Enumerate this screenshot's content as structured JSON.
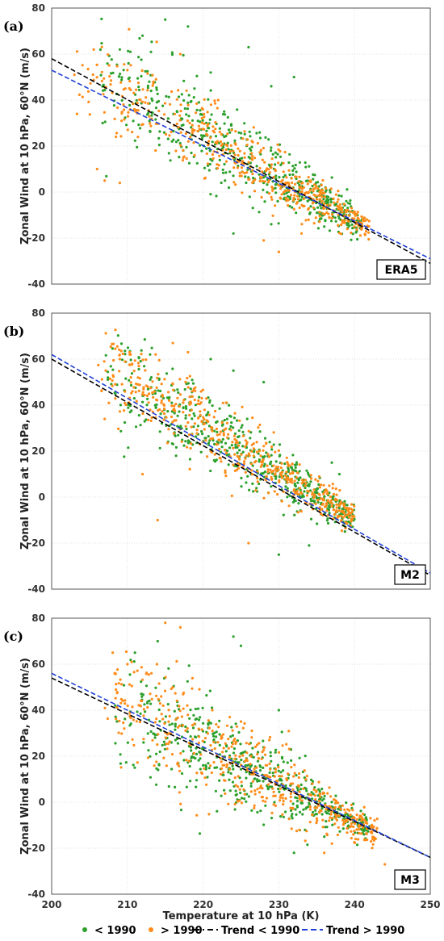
{
  "colors": {
    "before_1990": "#2ca02c",
    "after_1990": "#ff8c1a",
    "trend_before": "#000000",
    "trend_after": "#1f3fd4"
  },
  "legend": {
    "items": [
      {
        "label": "< 1990",
        "kind": "marker",
        "color": "#2ca02c"
      },
      {
        "label": "> 1990",
        "kind": "marker",
        "color": "#ff8c1a"
      },
      {
        "label": "Trend < 1990",
        "kind": "dash",
        "color": "#000000"
      },
      {
        "label": "Trend > 1990",
        "kind": "dash",
        "color": "#1f3fd4"
      }
    ]
  },
  "shared": {
    "xlabel": "Temperature at 10 hPa (K)",
    "ylabel": "Zonal Wind at 10 hPa, 60°N (m/s)",
    "xlim": [
      200,
      250
    ],
    "ylim": [
      -40,
      80
    ],
    "xticks": [
      200,
      210,
      220,
      230,
      240,
      250
    ],
    "yticks": [
      80,
      60,
      40,
      20,
      0,
      -20,
      -40
    ],
    "grid": true
  },
  "chart_data": [
    {
      "type": "scatter",
      "panel": "(a)",
      "model": "ERA5",
      "series": [
        {
          "name": "< 1990",
          "cloud": {
            "x_range": [
              206,
              241
            ],
            "center_y_at_240": -12,
            "slope": -1.85,
            "spread": 12
          },
          "points": [
            [
              215,
              75
            ],
            [
              218,
              72
            ],
            [
              212,
              68
            ],
            [
              209,
              62
            ],
            [
              226,
              63
            ],
            [
              232,
              50
            ],
            [
              221,
              52
            ],
            [
              229,
              46
            ],
            [
              224,
              -18
            ],
            [
              229,
              -14
            ],
            [
              236,
              -15
            ]
          ]
        },
        {
          "name": "> 1990",
          "cloud": {
            "x_range": [
              203,
              242
            ],
            "center_y_at_240": -12,
            "slope": -1.75,
            "spread": 10
          },
          "points": [
            [
              203,
              51
            ],
            [
              206,
              10
            ],
            [
              207,
              5
            ],
            [
              209,
              4
            ],
            [
              217,
              60
            ],
            [
              222,
              40
            ],
            [
              228,
              -21
            ],
            [
              230,
              -26
            ],
            [
              233,
              -18
            ]
          ]
        }
      ],
      "trends": [
        {
          "name": "Trend < 1990",
          "x": [
            200,
            250
          ],
          "y": [
            58,
            -31
          ]
        },
        {
          "name": "Trend > 1990",
          "x": [
            200,
            250
          ],
          "y": [
            53,
            -29
          ]
        }
      ]
    },
    {
      "type": "scatter",
      "panel": "(b)",
      "model": "M2",
      "series": [
        {
          "name": "< 1990",
          "cloud": {
            "x_range": [
              207,
              240
            ],
            "center_y_at_240": -10,
            "slope": -2.0,
            "spread": 10
          },
          "points": [
            [
              213,
              62
            ],
            [
              221,
              60
            ],
            [
              224,
              55
            ],
            [
              237,
              15
            ],
            [
              238,
              10
            ],
            [
              230,
              -25
            ],
            [
              234,
              -21
            ],
            [
              239,
              -11
            ],
            [
              228,
              50
            ]
          ]
        },
        {
          "name": "> 1990",
          "cloud": {
            "x_range": [
              206,
              240
            ],
            "center_y_at_240": -10,
            "slope": -2.05,
            "spread": 10
          },
          "points": [
            [
              209,
              60
            ],
            [
              216,
              67
            ],
            [
              218,
              63
            ],
            [
              214,
              -10
            ],
            [
              212,
              10
            ],
            [
              226,
              -20
            ],
            [
              207,
              34
            ]
          ]
        }
      ],
      "trends": [
        {
          "name": "Trend < 1990",
          "x": [
            200,
            250
          ],
          "y": [
            60,
            -34
          ]
        },
        {
          "name": "Trend > 1990",
          "x": [
            200,
            250
          ],
          "y": [
            62,
            -33
          ]
        }
      ]
    },
    {
      "type": "scatter",
      "panel": "(c)",
      "model": "M3",
      "series": [
        {
          "name": "< 1990",
          "cloud": {
            "x_range": [
              208,
              242
            ],
            "center_y_at_240": -8,
            "slope": -1.6,
            "spread": 13
          },
          "points": [
            [
              211,
              65
            ],
            [
              214,
              70
            ],
            [
              224,
              72
            ],
            [
              225,
              68
            ],
            [
              232,
              -22
            ],
            [
              236,
              -15
            ],
            [
              241,
              -8
            ],
            [
              230,
              40
            ]
          ]
        },
        {
          "name": "> 1990",
          "cloud": {
            "x_range": [
              207,
              243
            ],
            "center_y_at_240": -9,
            "slope": -1.7,
            "spread": 13
          },
          "points": [
            [
              215,
              78
            ],
            [
              217,
              76
            ],
            [
              210,
              60
            ],
            [
              236,
              -22
            ],
            [
              244,
              -27
            ],
            [
              237,
              -18
            ],
            [
              216,
              50
            ]
          ]
        }
      ],
      "trends": [
        {
          "name": "Trend < 1990",
          "x": [
            200,
            250
          ],
          "y": [
            54,
            -24
          ]
        },
        {
          "name": "Trend > 1990",
          "x": [
            200,
            250
          ],
          "y": [
            56,
            -24
          ]
        }
      ]
    }
  ]
}
